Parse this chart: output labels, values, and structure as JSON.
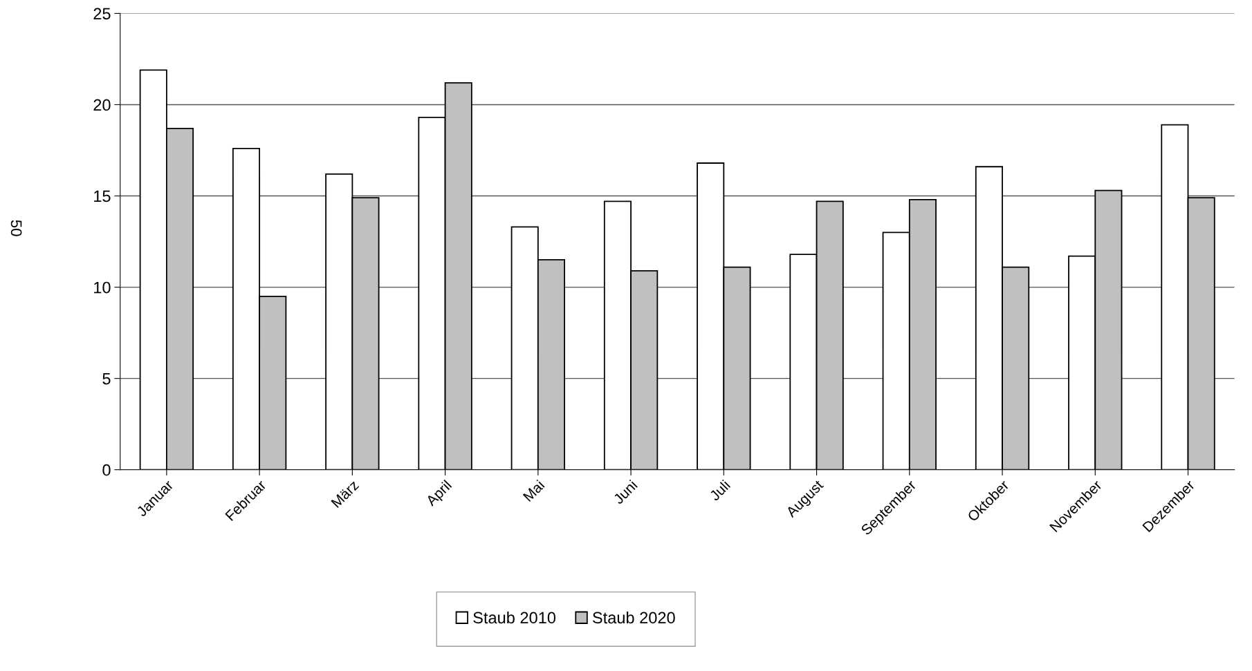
{
  "chart_data": {
    "type": "bar",
    "ylabel": "50",
    "categories": [
      "Januar",
      "Februar",
      "März",
      "April",
      "Mai",
      "Juni",
      "Juli",
      "August",
      "September",
      "Oktober",
      "November",
      "Dezember"
    ],
    "series": [
      {
        "name": "Staub 2010",
        "color": "#ffffff",
        "values": [
          21.9,
          17.6,
          16.2,
          19.3,
          13.3,
          14.7,
          16.8,
          11.8,
          13.0,
          16.6,
          11.7,
          18.9
        ]
      },
      {
        "name": "Staub 2020",
        "color": "#c0c0c0",
        "values": [
          18.7,
          9.5,
          14.9,
          21.2,
          11.5,
          10.9,
          11.1,
          14.7,
          14.8,
          11.1,
          15.3,
          14.9
        ]
      }
    ],
    "ylim": [
      0,
      25
    ],
    "yticks": [
      0,
      5,
      10,
      15,
      20,
      25
    ],
    "grid": "y",
    "legend": "bottom"
  }
}
